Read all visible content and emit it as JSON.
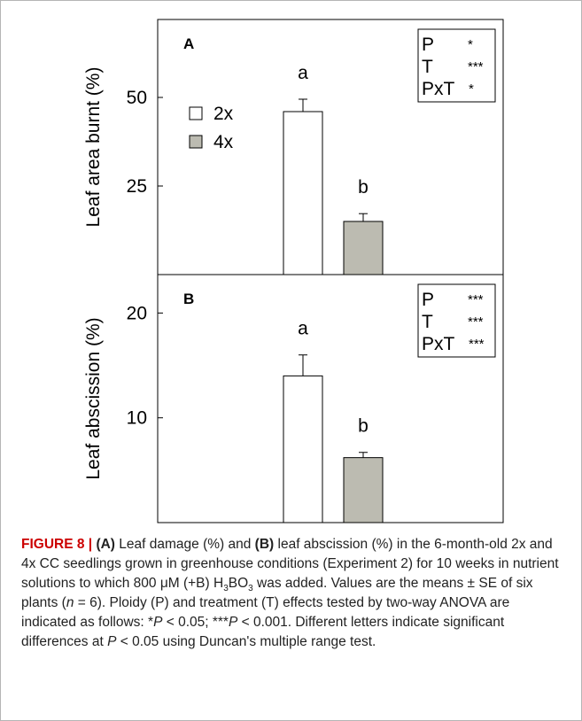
{
  "chart_data": [
    {
      "panel": "A",
      "type": "bar",
      "ylabel": "Leaf area burnt (%)",
      "categories": [
        "2x",
        "4x"
      ],
      "values": [
        46,
        15
      ],
      "errors": [
        3.5,
        2.2
      ],
      "letters": [
        "a",
        "b"
      ],
      "yticks": [
        25,
        50
      ],
      "ylim": [
        0,
        65
      ],
      "bar_colors": [
        "#ffffff",
        "#bcbbb1"
      ],
      "legend": [
        {
          "label": "2x",
          "color": "#ffffff"
        },
        {
          "label": "4x",
          "color": "#bcbbb1"
        }
      ],
      "legend_position": "top-left",
      "stats": [
        {
          "effect": "P",
          "sig": "*"
        },
        {
          "effect": "T",
          "sig": "***"
        },
        {
          "effect": "PxT",
          "sig": "*"
        }
      ],
      "grid": false
    },
    {
      "panel": "B",
      "type": "bar",
      "ylabel": "Leaf abscission (%)",
      "categories": [
        "2x",
        "4x"
      ],
      "values": [
        14,
        6.2
      ],
      "errors": [
        2,
        0.5
      ],
      "letters": [
        "a",
        "b"
      ],
      "yticks": [
        10,
        20
      ],
      "ylim": [
        0,
        25
      ],
      "bar_colors": [
        "#ffffff",
        "#bcbbb1"
      ],
      "stats": [
        {
          "effect": "P",
          "sig": "***"
        },
        {
          "effect": "T",
          "sig": "***"
        },
        {
          "effect": "PxT",
          "sig": "***"
        }
      ],
      "grid": false
    }
  ],
  "caption": {
    "figure_label": "FIGURE 8 |",
    "panel_a": "(A)",
    "panel_b": "(B)",
    "text_1": " Leaf damage (%) and ",
    "text_2": " leaf abscission (%) in the 6-month-old 2x and 4x CC seedlings grown in greenhouse conditions (Experiment 2) for 10 weeks in nutrient solutions to which 800 μM (+B) H",
    "sub_3a": "3",
    "text_3": "BO",
    "sub_3b": "3",
    "text_4": " was added. Values are the means ± SE of six plants (",
    "n_italic": "n",
    "text_5": " = 6). Ploidy (P) and treatment (T) effects tested by two-way ANOVA are indicated as follows: *",
    "p1": "P",
    "text_6": " < 0.05; ***",
    "p2": "P",
    "text_7": " < 0.001. Different letters indicate significant differences at ",
    "p3": "P",
    "text_8": " < 0.05 using Duncan's multiple range test."
  }
}
